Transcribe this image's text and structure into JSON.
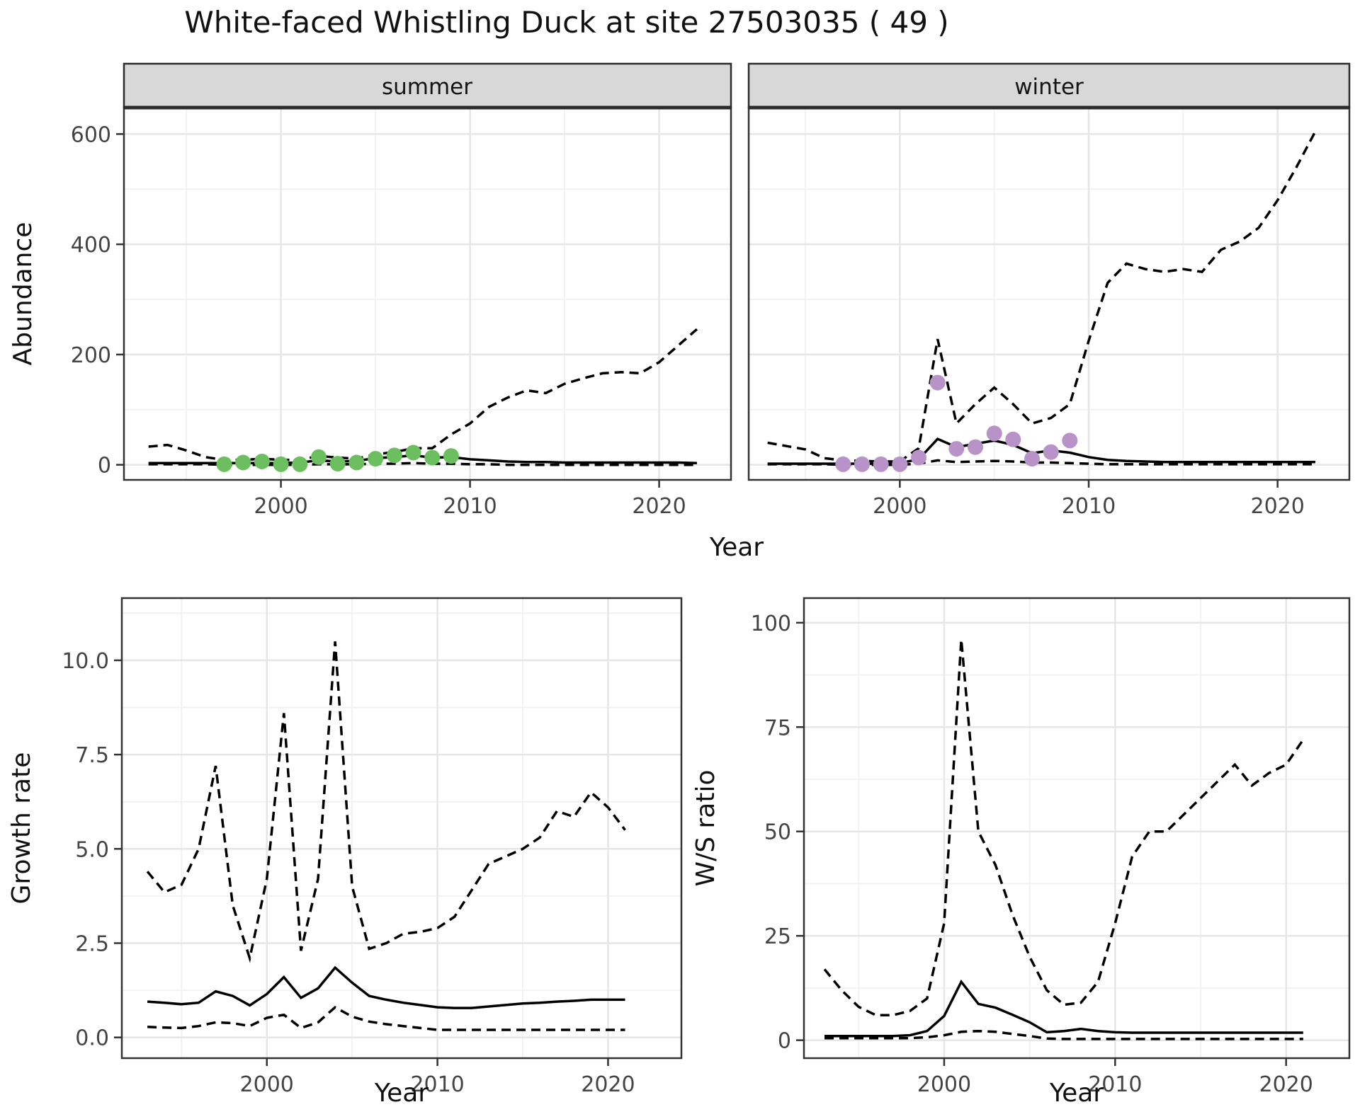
{
  "title": "White-faced Whistling Duck at site 27503035 ( 49 )",
  "facets": {
    "summer": "summer",
    "winter": "winter"
  },
  "axis_titles": {
    "abundance": "Abundance",
    "year": "Year",
    "growth_rate": "Growth rate",
    "ws_ratio": "W/S ratio"
  },
  "colors": {
    "summer_points": "#6bbf5f",
    "winter_points": "#b893c8",
    "line": "#000000",
    "strip_bg": "#d8d8d8",
    "strip_border": "#2b2b2b",
    "panel_border": "#333333",
    "grid_major": "#e6e6e6",
    "grid_minor": "#f2f2f2",
    "tick": "#333333",
    "axis_text": "#444444"
  },
  "chart_data": [
    {
      "type": "line",
      "panel": "summer",
      "facet_label": "summer",
      "xlabel": "Year",
      "ylabel": "Abundance",
      "xlim": [
        1991.7,
        2023.8
      ],
      "ylim": [
        -27.4,
        648
      ],
      "xticks": {
        "values": [
          2000,
          2010,
          2020
        ],
        "labels": [
          "2000",
          "2010",
          "2020"
        ]
      },
      "yticks": {
        "values": [
          0,
          200,
          400,
          600
        ],
        "labels": [
          "0",
          "200",
          "400",
          "600"
        ],
        "show_labels": true
      },
      "xminor": [
        1995,
        2005,
        2015
      ],
      "yminor": [
        100,
        300,
        500
      ],
      "grid": true,
      "x": [
        1993,
        1994,
        1995,
        1996,
        1997,
        1998,
        1999,
        2000,
        2001,
        2002,
        2003,
        2004,
        2005,
        2006,
        2007,
        2008,
        2009,
        2010,
        2011,
        2012,
        2013,
        2014,
        2015,
        2016,
        2017,
        2018,
        2019,
        2020,
        2021,
        2022
      ],
      "series": [
        {
          "name": "median",
          "style": "solid",
          "values": [
            3,
            3,
            3,
            3,
            3,
            3,
            3,
            3,
            4,
            8,
            6,
            7,
            12,
            14,
            17,
            13,
            14,
            10,
            8,
            6,
            5,
            5,
            4,
            4,
            4,
            4,
            4,
            4,
            4,
            3
          ]
        },
        {
          "name": "upper-ci",
          "style": "dashed",
          "values": [
            33,
            36,
            26,
            14,
            9,
            9,
            11,
            9,
            9,
            16,
            13,
            11,
            19,
            23,
            30,
            30,
            55,
            75,
            105,
            122,
            135,
            130,
            147,
            157,
            166,
            168,
            166,
            186,
            216,
            246
          ]
        },
        {
          "name": "lower-ci",
          "style": "dashed",
          "values": [
            1,
            1,
            1,
            1,
            0,
            0,
            0,
            0,
            0,
            1,
            1,
            1,
            2,
            2,
            3,
            2,
            2,
            1,
            1,
            0,
            0,
            0,
            0,
            0,
            0,
            0,
            0,
            0,
            0,
            0
          ]
        }
      ],
      "points": {
        "name": "observed-counts-summer",
        "color": "#6bbf5f",
        "x": [
          1997,
          1998,
          1999,
          2000,
          2001,
          2002,
          2003,
          2004,
          2005,
          2006,
          2007,
          2008,
          2009
        ],
        "y": [
          1,
          4,
          6,
          1,
          1,
          14,
          2,
          4,
          11,
          17,
          22,
          13,
          16
        ]
      }
    },
    {
      "type": "line",
      "panel": "winter",
      "facet_label": "winter",
      "xlabel": "Year",
      "ylabel": "Abundance",
      "xlim": [
        1992.0,
        2023.8
      ],
      "ylim": [
        -27.4,
        648
      ],
      "xticks": {
        "values": [
          2000,
          2010,
          2020
        ],
        "labels": [
          "2000",
          "2010",
          "2020"
        ]
      },
      "yticks": {
        "values": [
          0,
          200,
          400,
          600
        ],
        "labels": [],
        "show_labels": false
      },
      "xminor": [
        1995,
        2005,
        2015
      ],
      "yminor": [
        100,
        300,
        500
      ],
      "grid": true,
      "x": [
        1993,
        1994,
        1995,
        1996,
        1997,
        1998,
        1999,
        2000,
        2001,
        2002,
        2003,
        2004,
        2005,
        2006,
        2007,
        2008,
        2009,
        2010,
        2011,
        2012,
        2013,
        2014,
        2015,
        2016,
        2017,
        2018,
        2019,
        2020,
        2021,
        2022
      ],
      "series": [
        {
          "name": "median",
          "style": "solid",
          "values": [
            2,
            2,
            2,
            2,
            2,
            2,
            2,
            3,
            10,
            47,
            32,
            38,
            44,
            36,
            21,
            26,
            22,
            14,
            9,
            7,
            6,
            5,
            5,
            5,
            5,
            5,
            5,
            5,
            5,
            5
          ]
        },
        {
          "name": "upper-ci",
          "style": "dashed",
          "values": [
            40,
            34,
            28,
            12,
            8,
            7,
            6,
            6,
            30,
            228,
            75,
            110,
            140,
            110,
            75,
            85,
            110,
            225,
            330,
            365,
            355,
            350,
            355,
            350,
            390,
            405,
            430,
            480,
            540,
            605
          ]
        },
        {
          "name": "lower-ci",
          "style": "dashed",
          "values": [
            1,
            1,
            1,
            1,
            0,
            0,
            0,
            0,
            2,
            8,
            5,
            6,
            7,
            6,
            4,
            4,
            3,
            2,
            1,
            1,
            1,
            1,
            1,
            1,
            1,
            1,
            1,
            1,
            1,
            1
          ]
        }
      ],
      "points": {
        "name": "observed-counts-winter",
        "color": "#b893c8",
        "x": [
          1997,
          1998,
          1999,
          2000,
          2001,
          2002,
          2003,
          2004,
          2005,
          2006,
          2007,
          2008,
          2009
        ],
        "y": [
          1,
          1,
          1,
          1,
          13,
          149,
          29,
          32,
          57,
          46,
          11,
          23,
          44
        ]
      }
    },
    {
      "type": "line",
      "panel": "growth",
      "facet_label": null,
      "xlabel": "Year",
      "ylabel": "Growth rate",
      "xlim": [
        1991.5,
        2024.3
      ],
      "ylim": [
        -0.55,
        11.65
      ],
      "xticks": {
        "values": [
          2000,
          2010,
          2020
        ],
        "labels": [
          "2000",
          "2010",
          "2020"
        ]
      },
      "yticks": {
        "values": [
          0,
          2.5,
          5,
          7.5,
          10
        ],
        "labels": [
          "0.0",
          "2.5",
          "5.0",
          "7.5",
          "10.0"
        ],
        "show_labels": true
      },
      "xminor": [
        1995,
        2005,
        2015
      ],
      "yminor": [
        1.25,
        3.75,
        6.25,
        8.75,
        11.25
      ],
      "grid": true,
      "x": [
        1993,
        1994,
        1995,
        1996,
        1997,
        1998,
        1999,
        2000,
        2001,
        2002,
        2003,
        2004,
        2005,
        2006,
        2007,
        2008,
        2009,
        2010,
        2011,
        2012,
        2013,
        2014,
        2015,
        2016,
        2017,
        2018,
        2019,
        2020,
        2021
      ],
      "series": [
        {
          "name": "median",
          "style": "solid",
          "values": [
            0.95,
            0.92,
            0.88,
            0.92,
            1.22,
            1.1,
            0.85,
            1.15,
            1.6,
            1.05,
            1.3,
            1.85,
            1.45,
            1.1,
            1.0,
            0.92,
            0.86,
            0.8,
            0.78,
            0.78,
            0.82,
            0.86,
            0.9,
            0.92,
            0.95,
            0.97,
            1.0,
            1.0,
            1.0
          ]
        },
        {
          "name": "upper-ci",
          "style": "dashed",
          "values": [
            4.4,
            3.85,
            4.05,
            5.0,
            7.2,
            3.5,
            2.1,
            4.2,
            8.6,
            2.3,
            4.2,
            10.5,
            4.0,
            2.35,
            2.5,
            2.75,
            2.8,
            2.9,
            3.2,
            3.9,
            4.6,
            4.8,
            5.0,
            5.3,
            6.0,
            5.85,
            6.5,
            6.1,
            5.5
          ]
        },
        {
          "name": "lower-ci",
          "style": "dashed",
          "values": [
            0.28,
            0.26,
            0.25,
            0.3,
            0.4,
            0.38,
            0.3,
            0.52,
            0.6,
            0.25,
            0.4,
            0.8,
            0.55,
            0.42,
            0.35,
            0.3,
            0.25,
            0.2,
            0.2,
            0.2,
            0.2,
            0.2,
            0.2,
            0.2,
            0.2,
            0.2,
            0.2,
            0.2,
            0.2
          ]
        }
      ],
      "points": null
    },
    {
      "type": "line",
      "panel": "ws",
      "facet_label": null,
      "xlabel": "Year",
      "ylabel": "W/S ratio",
      "xlim": [
        1991.8,
        2023.7
      ],
      "ylim": [
        -4.3,
        105.9
      ],
      "xticks": {
        "values": [
          2000,
          2010,
          2020
        ],
        "labels": [
          "2000",
          "2010",
          "2020"
        ]
      },
      "yticks": {
        "values": [
          0,
          25,
          50,
          75,
          100
        ],
        "labels": [
          "0",
          "25",
          "50",
          "75",
          "100"
        ],
        "show_labels": true
      },
      "xminor": [
        1995,
        2005,
        2015
      ],
      "yminor": [
        12.5,
        37.5,
        62.5,
        87.5
      ],
      "grid": true,
      "x": [
        1993,
        1994,
        1995,
        1996,
        1997,
        1998,
        1999,
        2000,
        2001,
        2002,
        2003,
        2004,
        2005,
        2006,
        2007,
        2008,
        2009,
        2010,
        2011,
        2012,
        2013,
        2014,
        2015,
        2016,
        2017,
        2018,
        2019,
        2020,
        2021
      ],
      "series": [
        {
          "name": "median",
          "style": "solid",
          "values": [
            1,
            1,
            1,
            1,
            1,
            1.2,
            2.2,
            5.8,
            14,
            8.7,
            7.8,
            6.1,
            4.3,
            1.9,
            2.2,
            2.7,
            2.2,
            1.9,
            1.8,
            1.8,
            1.8,
            1.8,
            1.8,
            1.8,
            1.8,
            1.8,
            1.8,
            1.8,
            1.8
          ]
        },
        {
          "name": "upper-ci",
          "style": "dashed",
          "values": [
            17,
            12,
            8,
            6,
            6,
            7,
            10,
            28,
            96,
            50,
            42,
            30,
            20,
            12,
            8.5,
            9,
            14,
            28,
            44,
            50,
            50,
            54,
            58,
            62,
            66,
            61,
            64,
            66,
            72
          ]
        },
        {
          "name": "lower-ci",
          "style": "dashed",
          "values": [
            0.5,
            0.5,
            0.5,
            0.5,
            0.5,
            0.5,
            0.7,
            1.2,
            2.0,
            2.2,
            2.0,
            1.5,
            1.0,
            0.4,
            0.3,
            0.3,
            0.3,
            0.3,
            0.3,
            0.3,
            0.3,
            0.3,
            0.3,
            0.3,
            0.3,
            0.3,
            0.3,
            0.3,
            0.3
          ]
        }
      ],
      "points": null
    }
  ]
}
